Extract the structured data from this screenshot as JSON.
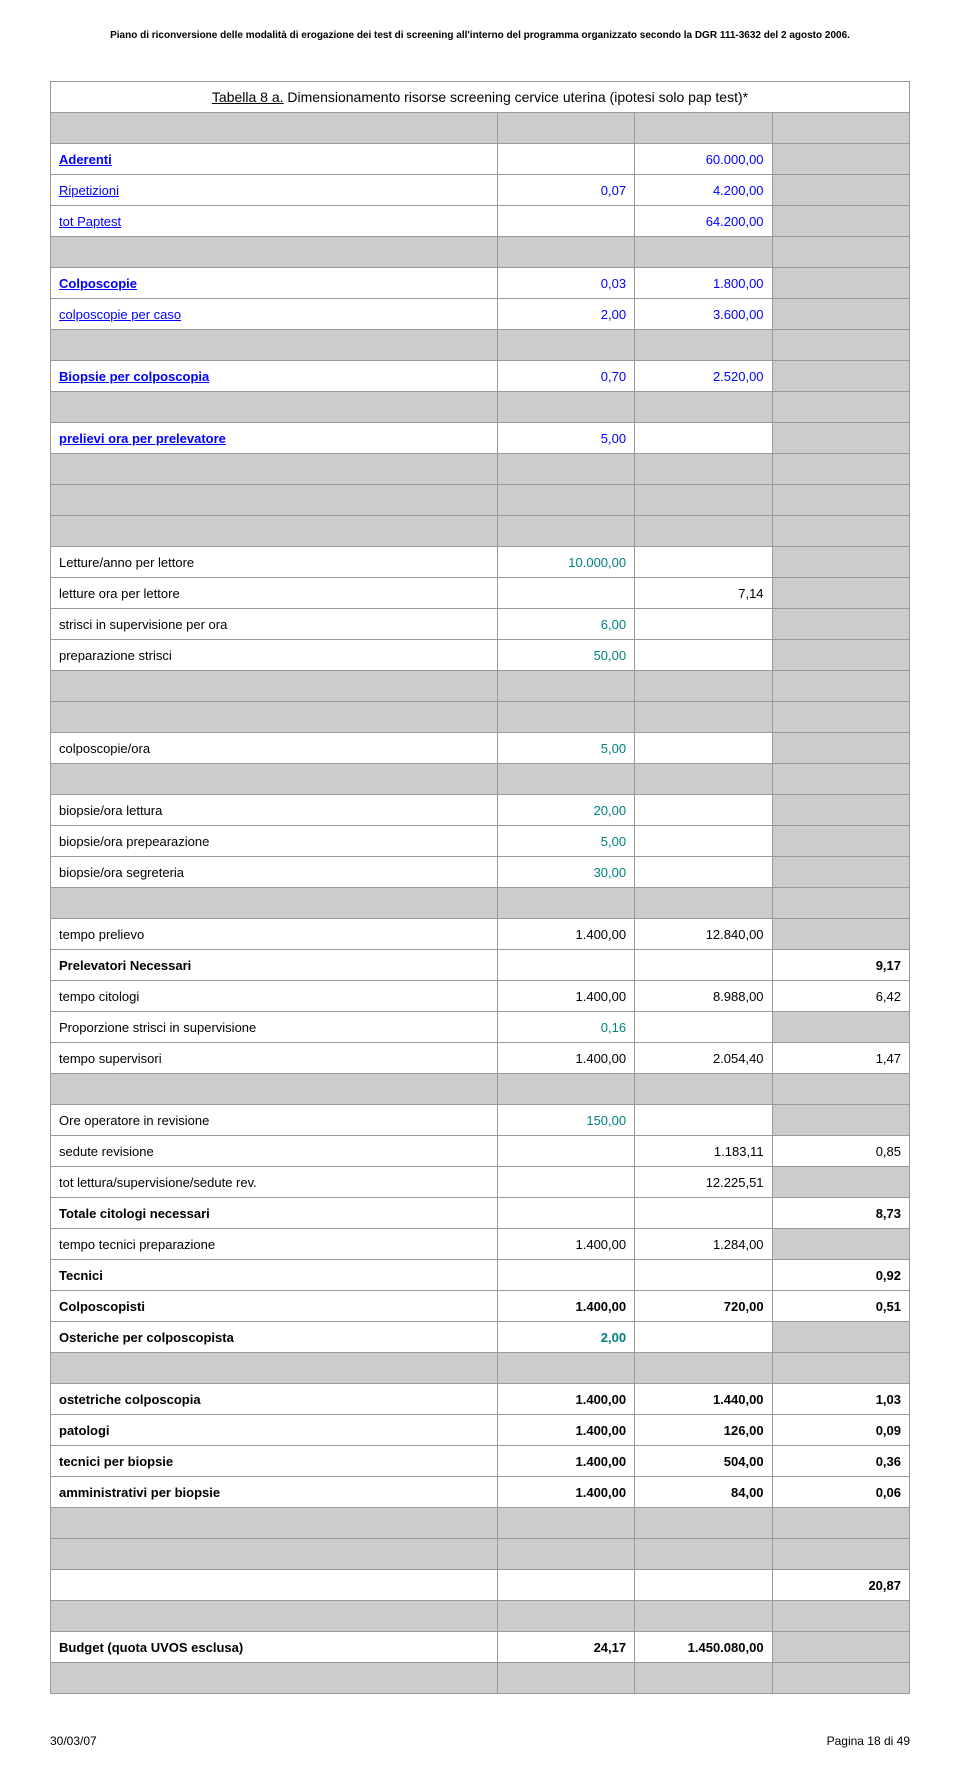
{
  "header": "Piano di riconversione delle modalità di erogazione dei test di screening all'interno del programma organizzato secondo la DGR 111-3632 del 2 agosto 2006.",
  "title_prefix": "Tabella 8 a.",
  "title_rest": " Dimensionamento risorse screening cervice uterina (ipotesi solo pap test)*",
  "rows": {
    "aderenti": {
      "l": "Aderenti",
      "v3": "60.000,00"
    },
    "ripetizioni": {
      "l": "Ripetizioni",
      "v2": "0,07",
      "v3": "4.200,00"
    },
    "totpaptest": {
      "l": "tot Paptest",
      "v3": "64.200,00"
    },
    "colposcopie": {
      "l": "Colposcopie",
      "v2": "0,03",
      "v3": "1.800,00"
    },
    "colpcaso": {
      "l": "colposcopie per caso",
      "v2": "2,00",
      "v3": "3.600,00"
    },
    "biopsie": {
      "l": "Biopsie per colposcopia",
      "v2": "0,70",
      "v3": "2.520,00"
    },
    "prelievi": {
      "l": "prelievi ora per prelevatore",
      "v2": "5,00"
    },
    "letture_anno": {
      "l": "Letture/anno per lettore",
      "v2": "10.000,00"
    },
    "letture_ora": {
      "l": "letture ora per lettore",
      "v3": "7,14"
    },
    "strisci_sup": {
      "l": "strisci in supervisione per ora",
      "v2": "6,00"
    },
    "prep_strisci": {
      "l": "preparazione strisci",
      "v2": "50,00"
    },
    "colp_ora": {
      "l": "colposcopie/ora",
      "v2": "5,00"
    },
    "bio_lettura": {
      "l": "biopsie/ora lettura",
      "v2": "20,00"
    },
    "bio_prep": {
      "l": "biopsie/ora prepearazione",
      "v2": "5,00"
    },
    "bio_seg": {
      "l": "biopsie/ora segreteria",
      "v2": "30,00"
    },
    "tempo_prelievo": {
      "l": "tempo prelievo",
      "v2": "1.400,00",
      "v3": "12.840,00"
    },
    "prelevatori": {
      "l": "Prelevatori Necessari",
      "v4": "9,17"
    },
    "tempo_cit": {
      "l": "tempo citologi",
      "v2": "1.400,00",
      "v3": "8.988,00",
      "v4": "6,42"
    },
    "prop_strisci": {
      "l": "Proporzione strisci in supervisione",
      "v2": "0,16"
    },
    "tempo_sup": {
      "l": "tempo supervisori",
      "v2": "1.400,00",
      "v3": "2.054,40",
      "v4": "1,47"
    },
    "ore_op": {
      "l": "Ore operatore in revisione",
      "v2": "150,00"
    },
    "sedute": {
      "l": "sedute revisione",
      "v3": "1.183,11",
      "v4": "0,85"
    },
    "tot_lettura": {
      "l": "tot lettura/supervisione/sedute rev.",
      "v3": "12.225,51"
    },
    "tot_cit": {
      "l": "Totale citologi necessari",
      "v4": "8,73"
    },
    "tempo_tec": {
      "l": "tempo tecnici preparazione",
      "v2": "1.400,00",
      "v3": "1.284,00"
    },
    "tecnici": {
      "l": "Tecnici",
      "v4": "0,92"
    },
    "colposcopisti": {
      "l": "Colposcopisti",
      "v2": "1.400,00",
      "v3": "720,00",
      "v4": "0,51"
    },
    "osteriche": {
      "l": "Osteriche per colposcopista",
      "v2": "2,00"
    },
    "ostetriche": {
      "l": "ostetriche colposcopia",
      "v2": "1.400,00",
      "v3": "1.440,00",
      "v4": "1,03"
    },
    "patologi": {
      "l": "patologi",
      "v2": "1.400,00",
      "v3": "126,00",
      "v4": "0,09"
    },
    "tec_bio": {
      "l": "tecnici per biopsie",
      "v2": "1.400,00",
      "v3": "504,00",
      "v4": "0,36"
    },
    "amm_bio": {
      "l": "amministrativi per biopsie",
      "v2": "1.400,00",
      "v3": "84,00",
      "v4": "0,06"
    },
    "totale": {
      "v4": "20,87"
    },
    "budget": {
      "l": "Budget (quota UVOS esclusa)",
      "v2": "24,17",
      "v3": "1.450.080,00"
    }
  },
  "footer": {
    "date": "30/03/07",
    "page": "Pagina 18 di 49"
  }
}
